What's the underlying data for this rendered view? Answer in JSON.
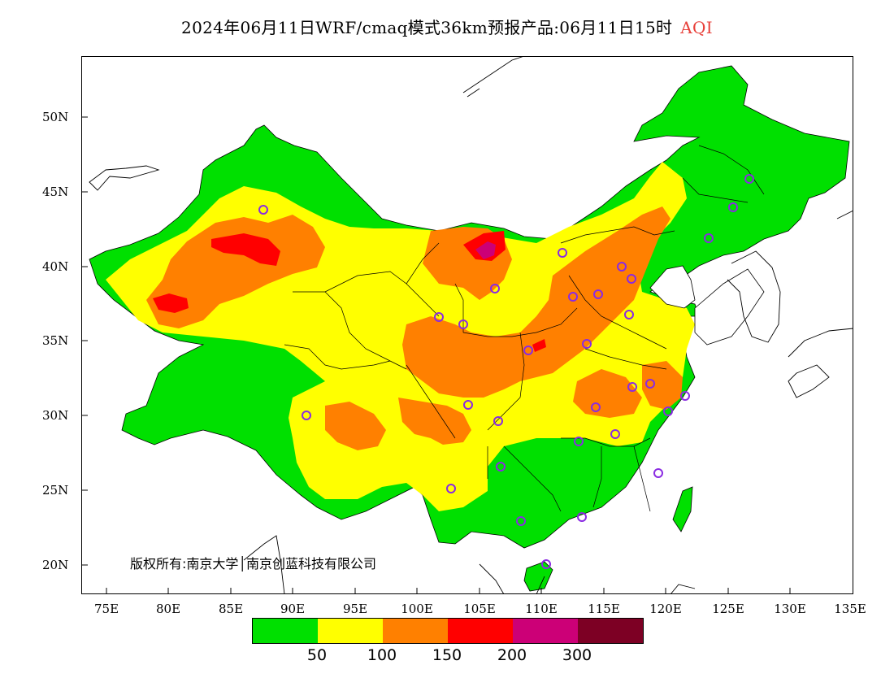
{
  "title": {
    "main": "2024年06月11日WRF/cmaq模式36km预报产品:06月11日15时",
    "variable": "AQI"
  },
  "axes": {
    "lat_labels": [
      "50N",
      "45N",
      "40N",
      "35N",
      "30N",
      "25N",
      "20N"
    ],
    "lon_labels": [
      "75E",
      "80E",
      "85E",
      "90E",
      "95E",
      "100E",
      "105E",
      "110E",
      "115E",
      "120E",
      "125E",
      "130E",
      "135E"
    ]
  },
  "copyright": "版权所有:南京大学│南京创蓝科技有限公司",
  "legend": {
    "colors": [
      "#00e000",
      "#ffff00",
      "#ff8000",
      "#ff0000",
      "#cc0077",
      "#7d0024"
    ],
    "labels": [
      "50",
      "100",
      "150",
      "200",
      "300"
    ]
  },
  "map_colors": {
    "good": "#00e000",
    "moderate": "#ffff00",
    "usg": "#ff8000",
    "unhealthy": "#ff0000",
    "very_unhealthy": "#cc0077",
    "station": "#8a2be2"
  }
}
